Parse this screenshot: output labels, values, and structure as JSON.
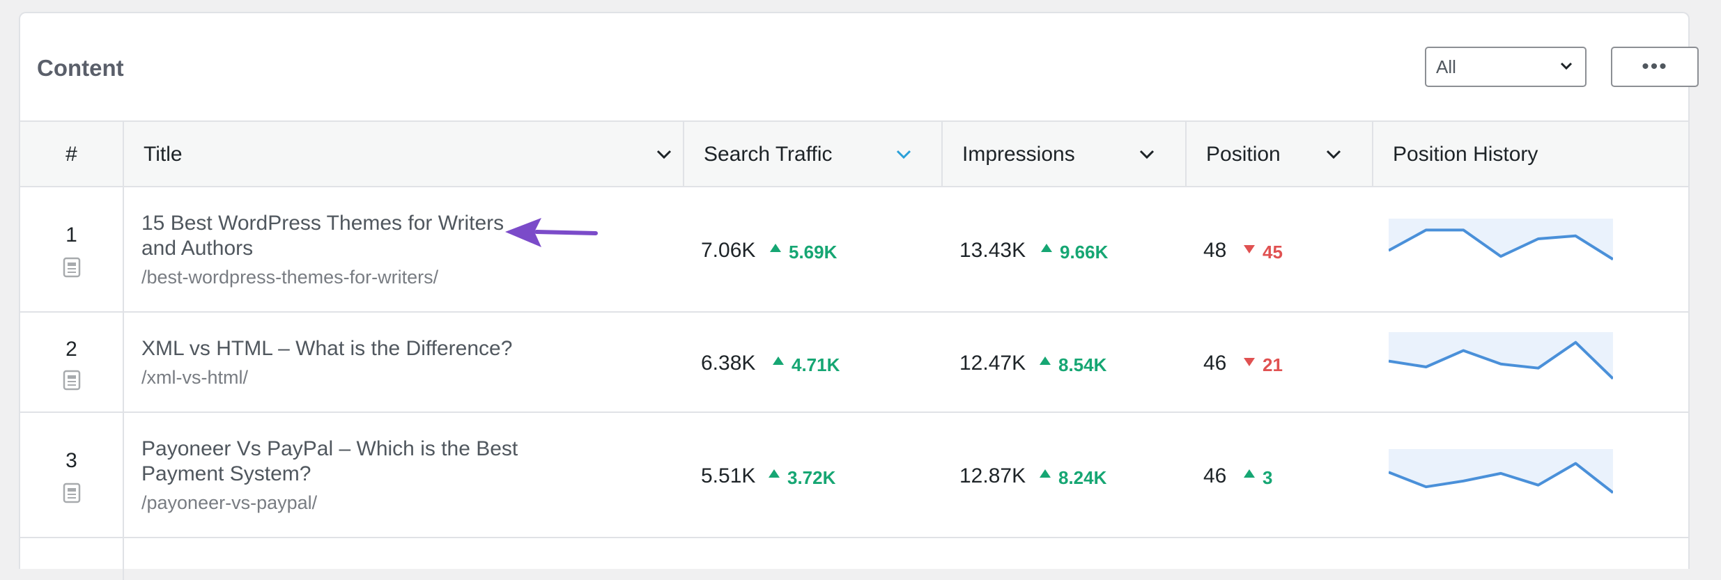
{
  "panel": {
    "title": "Content",
    "filter": {
      "selected": "All"
    },
    "more_label": "•••"
  },
  "columns": {
    "num": "#",
    "title": "Title",
    "traffic": "Search Traffic",
    "impressions": "Impressions",
    "position": "Position",
    "history": "Position History"
  },
  "colors": {
    "accent": "#2271b1",
    "up": "#16a673",
    "down": "#e05151",
    "spark": "#4a90d9",
    "arrow": "#7b4bc9"
  },
  "rows": [
    {
      "num": "1",
      "title_line1": "15 Best WordPress Themes for Writers",
      "title_line2": "and Authors",
      "url": "/best-wordpress-themes-for-writers/",
      "traffic": "7.06K",
      "traffic_delta": "5.69K",
      "traffic_dir": "up",
      "impressions": "13.43K",
      "impressions_delta": "9.66K",
      "impressions_dir": "up",
      "position": "48",
      "position_delta": "45",
      "position_dir": "down",
      "history": [
        55,
        90,
        90,
        45,
        75,
        80,
        40
      ]
    },
    {
      "num": "2",
      "title_line1": "XML vs HTML – What is the Difference?",
      "title_line2": "",
      "url": "/xml-vs-html/",
      "traffic": "6.38K",
      "traffic_delta": "4.71K",
      "traffic_dir": "up",
      "impressions": "12.47K",
      "impressions_delta": "8.54K",
      "impressions_dir": "up",
      "position": "46",
      "position_delta": "21",
      "position_dir": "down",
      "history": [
        60,
        50,
        78,
        55,
        48,
        92,
        30
      ]
    },
    {
      "num": "3",
      "title_line1": "Payoneer Vs PayPal – Which is the Best",
      "title_line2": "Payment System?",
      "url": "/payoneer-vs-paypal/",
      "traffic": "5.51K",
      "traffic_delta": "3.72K",
      "traffic_dir": "up",
      "impressions": "12.87K",
      "impressions_delta": "8.24K",
      "impressions_dir": "up",
      "position": "46",
      "position_delta": "3",
      "position_dir": "up",
      "history": [
        70,
        45,
        55,
        68,
        48,
        85,
        35
      ]
    }
  ]
}
